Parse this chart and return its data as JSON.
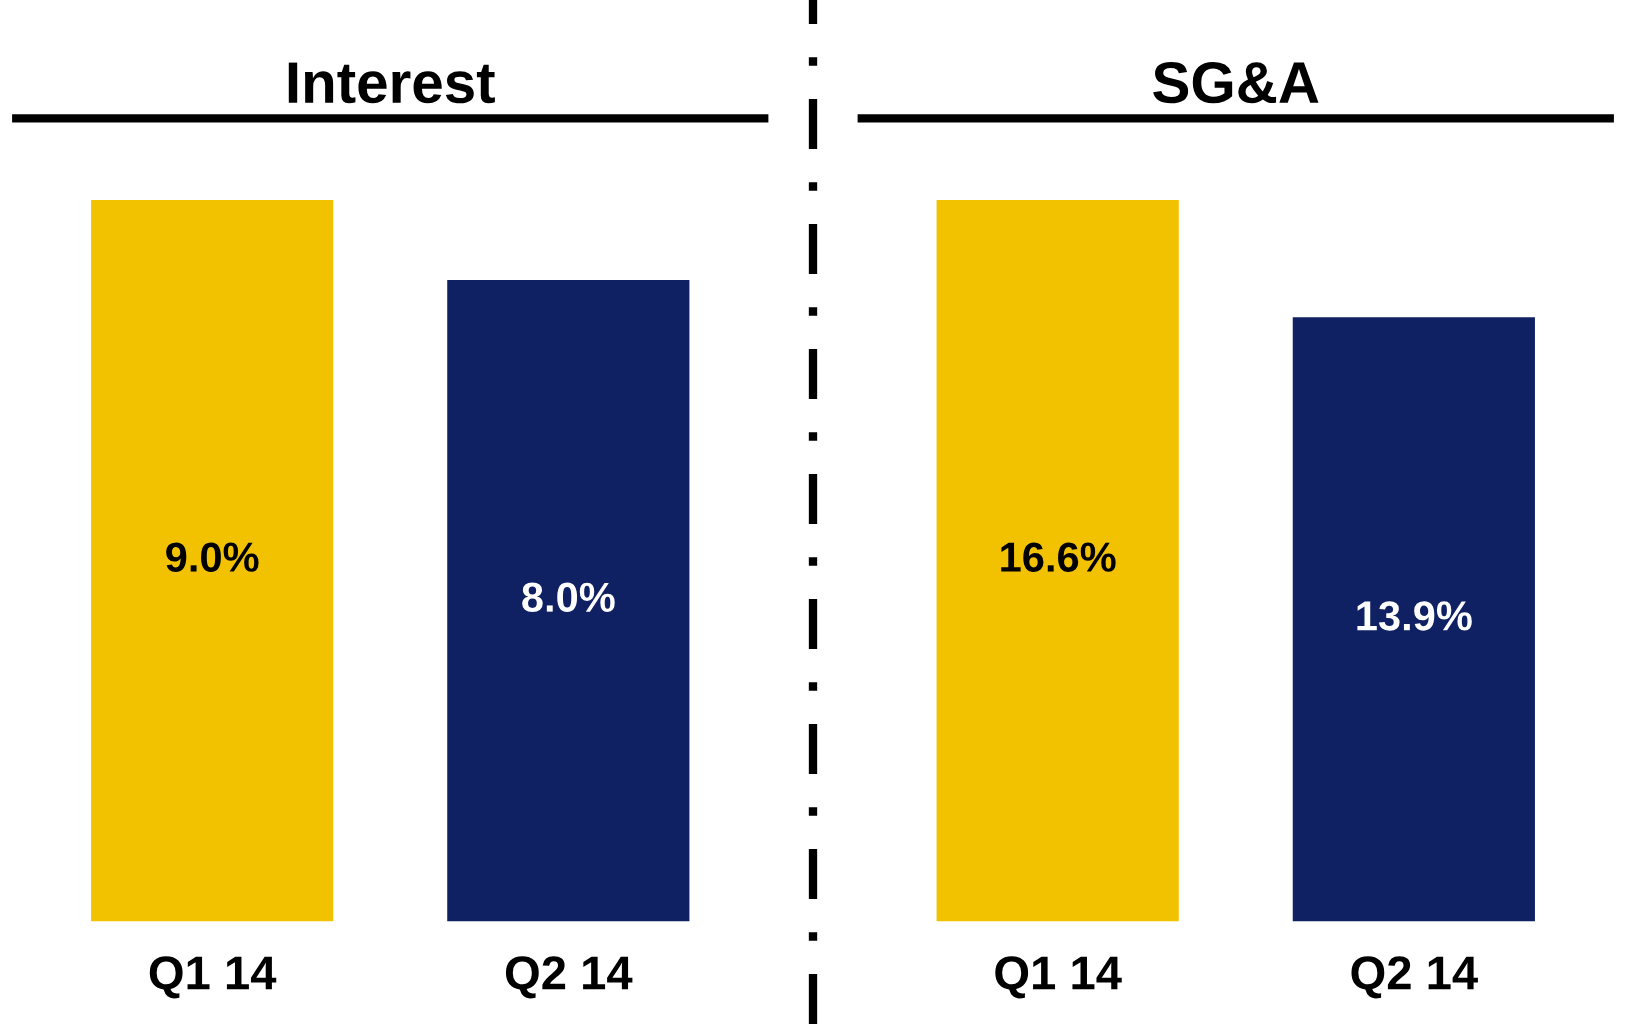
{
  "chart_data": [
    {
      "type": "bar",
      "title": "Interest",
      "categories": [
        "Q1 14",
        "Q2 14"
      ],
      "values": [
        9.0,
        8.0
      ],
      "colors": [
        "#f2c200",
        "#0f2163"
      ],
      "value_labels": [
        "9.0%",
        "8.0%"
      ],
      "tick_labels": "x",
      "grid": false,
      "legend": false
    },
    {
      "type": "bar",
      "title": "SG&A",
      "categories": [
        "Q1 14",
        "Q2 14"
      ],
      "values": [
        16.6,
        13.9
      ],
      "colors": [
        "#f2c200",
        "#0f2163"
      ],
      "value_labels": [
        "16.6%",
        "13.9%"
      ],
      "tick_labels": "x",
      "grid": false,
      "legend": false
    }
  ]
}
